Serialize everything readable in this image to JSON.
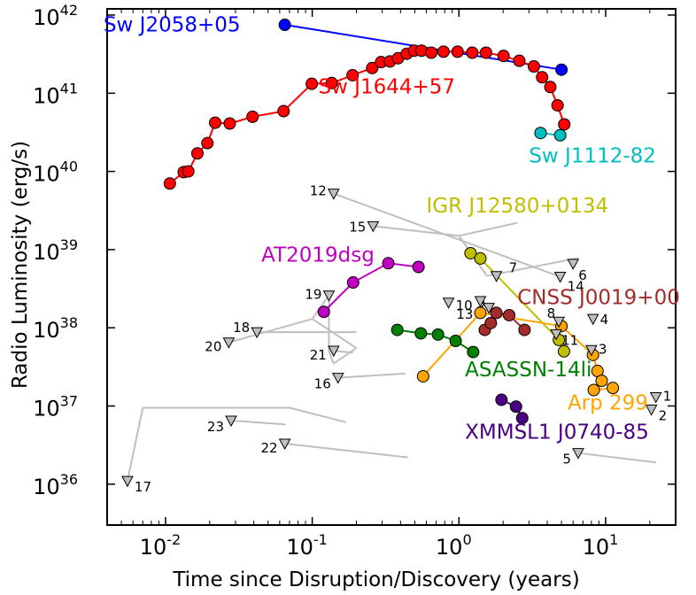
{
  "chart_data": {
    "type": "scatter",
    "xlabel": "Time since Disruption/Discovery (years)",
    "ylabel": "Radio Luminosity (erg/s)",
    "xscale": "log",
    "yscale": "log",
    "xlim": [
      0.004,
      30
    ],
    "ylim": [
      3e+35,
      1.2e+42
    ],
    "x_ticks": [
      {
        "value": 0.01,
        "base": "10",
        "exp": "-2"
      },
      {
        "value": 0.1,
        "base": "10",
        "exp": "-1"
      },
      {
        "value": 1,
        "base": "10",
        "exp": "0"
      },
      {
        "value": 10,
        "base": "10",
        "exp": "1"
      }
    ],
    "y_ticks": [
      {
        "value": 1e+36,
        "base": "10",
        "exp": "36"
      },
      {
        "value": 1e+37,
        "base": "10",
        "exp": "37"
      },
      {
        "value": 1e+38,
        "base": "10",
        "exp": "38"
      },
      {
        "value": 1e+39,
        "base": "10",
        "exp": "39"
      },
      {
        "value": 1e+40,
        "base": "10",
        "exp": "40"
      },
      {
        "value": 1e+41,
        "base": "10",
        "exp": "41"
      },
      {
        "value": 1e+42,
        "base": "10",
        "exp": "42"
      }
    ],
    "grid": false,
    "series": [
      {
        "name": "Sw J2058+05",
        "color": "#0000ff",
        "marker": "circle",
        "x": [
          0.065,
          5.0
        ],
        "y": [
          7.5e+41,
          2e+41
        ]
      },
      {
        "name": "Sw J1644+57",
        "color": "#ff0000",
        "marker": "circle",
        "x": [
          0.0107,
          0.0133,
          0.0143,
          0.0165,
          0.0193,
          0.0218,
          0.0274,
          0.0392,
          0.0638,
          0.0993,
          0.1358,
          0.1884,
          0.2563,
          0.2945,
          0.3385,
          0.3843,
          0.4412,
          0.4951,
          0.5557,
          0.6482,
          0.7852,
          0.9789,
          1.2326,
          1.5298,
          2.0139,
          2.5789,
          3.2436,
          3.6898,
          4.1974,
          4.7011,
          5.2211
        ],
        "y": [
          7e+39,
          9.8e+39,
          1e+40,
          1.7e+40,
          2.3e+40,
          4.2e+40,
          4.1e+40,
          5e+40,
          5.9e+40,
          1.32e+41,
          1.35e+41,
          1.7e+41,
          2.1e+41,
          2.5e+41,
          2.55e+41,
          2.8e+41,
          3.2e+41,
          3.5e+41,
          3.5e+41,
          3.3e+41,
          3.4e+41,
          3.4e+41,
          3.3e+41,
          3.3e+41,
          3e+41,
          2.6e+41,
          2.2e+41,
          1.6e+41,
          1.2e+41,
          7e+40,
          4e+40
        ]
      },
      {
        "name": "Sw J1112-82",
        "color": "#00bfbf",
        "marker": "circle",
        "x": [
          3.6,
          4.9
        ],
        "y": [
          3.1e+40,
          2.9e+40
        ]
      },
      {
        "name": "IGR J12580+0134",
        "color": "#bfbf00",
        "marker": "circle",
        "x": [
          1.2,
          1.4,
          4.8,
          5.2
        ],
        "y": [
          9e+38,
          7.7e+38,
          7e+37,
          5e+37
        ]
      },
      {
        "name": "AT2019dsg",
        "color": "#bf00bf",
        "marker": "circle",
        "x": [
          0.12,
          0.19,
          0.33,
          0.53
        ],
        "y": [
          1.6e+38,
          3.8e+38,
          6.7e+38,
          6e+38
        ]
      },
      {
        "name": "CNSS J0019+00",
        "color": "#a52a2a",
        "marker": "circle",
        "x": [
          1.5,
          1.65,
          1.8,
          2.2,
          2.8
        ],
        "y": [
          9.4e+37,
          1.15e+38,
          1.55e+38,
          1.45e+38,
          9.4e+37
        ]
      },
      {
        "name": "ASASSN-14li",
        "color": "#008000",
        "marker": "circle",
        "x": [
          0.38,
          0.55,
          0.72,
          0.95,
          1.25
        ],
        "y": [
          9.4e+37,
          8.5e+37,
          8.2e+37,
          6.8e+37,
          4.9e+37
        ]
      },
      {
        "name": "Arp 299",
        "color": "#ffa500",
        "marker": "circle",
        "x": [
          0.57,
          1.4,
          5.0,
          8.2,
          8.8,
          9.4,
          11.2,
          8.3
        ],
        "y": [
          2.4e+37,
          1.55e+38,
          1.05e+38,
          4.5e+37,
          2.8e+37,
          2.1e+37,
          1.7e+37,
          1.6e+37
        ]
      },
      {
        "name": "XMMSL1 J0740-85",
        "color": "#4b0082",
        "marker": "circle",
        "x": [
          1.95,
          2.45,
          2.7
        ],
        "y": [
          1.2e+37,
          9.8e+36,
          7e+36
        ]
      }
    ],
    "upper_limits": [
      {
        "label": "1",
        "x": 22.0,
        "y": 1.3e+37
      },
      {
        "label": "2",
        "x": 20.5,
        "y": 9e+36
      },
      {
        "label": "3",
        "x": 8.0,
        "y": 5.2e+37
      },
      {
        "label": "4",
        "x": 8.2,
        "y": 1.3e+38
      },
      {
        "label": "5",
        "x": 6.5,
        "y": 2.5e+36
      },
      {
        "label": "6",
        "x": 6.0,
        "y": 6.6e+38
      },
      {
        "label": "7",
        "x": 1.8,
        "y": 4.6e+38
      },
      {
        "label": "8",
        "x": 4.8,
        "y": 1.2e+38
      },
      {
        "label": "9",
        "x": 1.6,
        "y": 1.8e+38
      },
      {
        "label": "10",
        "x": 0.85,
        "y": 2.1e+38
      },
      {
        "label": "11",
        "x": 4.6,
        "y": 8.3e+37
      },
      {
        "label": "12",
        "x": 0.14,
        "y": 5.2e+39
      },
      {
        "label": "13",
        "x": 1.4,
        "y": 2.2e+38
      },
      {
        "label": "14",
        "x": 4.9,
        "y": 4.5e+38
      },
      {
        "label": "15",
        "x": 0.26,
        "y": 2e+39
      },
      {
        "label": "16",
        "x": 0.15,
        "y": 2.3e+37
      },
      {
        "label": "17",
        "x": 0.0055,
        "y": 1.1e+36
      },
      {
        "label": "18",
        "x": 0.042,
        "y": 8.8e+37
      },
      {
        "label": "19",
        "x": 0.13,
        "y": 2.6e+38
      },
      {
        "label": "20",
        "x": 0.027,
        "y": 6.5e+37
      },
      {
        "label": "21",
        "x": 0.14,
        "y": 5.1e+37
      },
      {
        "label": "22",
        "x": 0.065,
        "y": 3.3e+36
      },
      {
        "label": "23",
        "x": 0.028,
        "y": 6.5e+36
      }
    ],
    "upper_limit_links": [
      {
        "from": [
          0.14,
          5.2e+39
        ],
        "to": [
          4.9,
          4.5e+38
        ]
      },
      {
        "from": [
          0.26,
          2e+39
        ],
        "to": [
          1.0,
          1.5e+39
        ]
      },
      {
        "from": [
          1.0,
          1.5e+39
        ],
        "to": [
          1.55,
          4.6e+38
        ]
      },
      {
        "from": [
          1.0,
          1.5e+39
        ],
        "to": [
          2.5,
          2.2e+39
        ]
      },
      {
        "from": [
          1.55,
          4.6e+38
        ],
        "to": [
          6.5,
          7.8e+38
        ]
      },
      {
        "from": [
          0.027,
          6.5e+37
        ],
        "to": [
          0.1,
          1.3e+38
        ]
      },
      {
        "from": [
          0.1,
          1.3e+38
        ],
        "to": [
          0.13,
          2.6e+38
        ]
      },
      {
        "from": [
          0.13,
          2.6e+38
        ],
        "to": [
          0.13,
          5e+37
        ]
      },
      {
        "from": [
          0.13,
          5e+37
        ],
        "to": [
          0.14,
          3.5e+37
        ]
      },
      {
        "from": [
          0.14,
          3.5e+37
        ],
        "to": [
          0.2,
          5.5e+37
        ]
      },
      {
        "from": [
          0.1,
          1.3e+38
        ],
        "to": [
          0.2,
          5.5e+37
        ]
      },
      {
        "from": [
          0.14,
          5.1e+37
        ],
        "to": [
          0.19,
          4.8e+37
        ]
      },
      {
        "from": [
          0.15,
          2.3e+37
        ],
        "to": [
          0.43,
          2.6e+37
        ]
      },
      {
        "from": [
          0.042,
          8.8e+37
        ],
        "to": [
          0.2,
          8.8e+37
        ]
      },
      {
        "from": [
          0.0055,
          1.1e+36
        ],
        "to": [
          0.007,
          9.5e+36
        ]
      },
      {
        "from": [
          0.007,
          9.5e+36
        ],
        "to": [
          0.025,
          9.5e+36
        ]
      },
      {
        "from": [
          0.025,
          9.5e+36
        ],
        "to": [
          0.07,
          9.5e+36
        ]
      },
      {
        "from": [
          0.07,
          9.5e+36
        ],
        "to": [
          0.17,
          6.2e+36
        ]
      },
      {
        "from": [
          0.028,
          6.5e+36
        ],
        "to": [
          0.066,
          5.8e+36
        ]
      },
      {
        "from": [
          0.065,
          3.3e+36
        ],
        "to": [
          0.45,
          2.2e+36
        ]
      },
      {
        "from": [
          6.5,
          2.5e+36
        ],
        "to": [
          22.0,
          1.9e+36
        ]
      }
    ],
    "annotations": [
      {
        "text": "Sw J2058+05",
        "series": 0
      },
      {
        "text": "Sw J1644+57",
        "series": 1
      },
      {
        "text": "Sw J1112-82",
        "series": 2
      },
      {
        "text": "IGR J12580+0134",
        "series": 3
      },
      {
        "text": "AT2019dsg",
        "series": 4
      },
      {
        "text": "CNSS J0019+00",
        "series": 5
      },
      {
        "text": "ASASSN-14li",
        "series": 6
      },
      {
        "text": "Arp 299",
        "series": 7
      },
      {
        "text": "XMMSL1 J0740-85",
        "series": 8
      }
    ]
  }
}
